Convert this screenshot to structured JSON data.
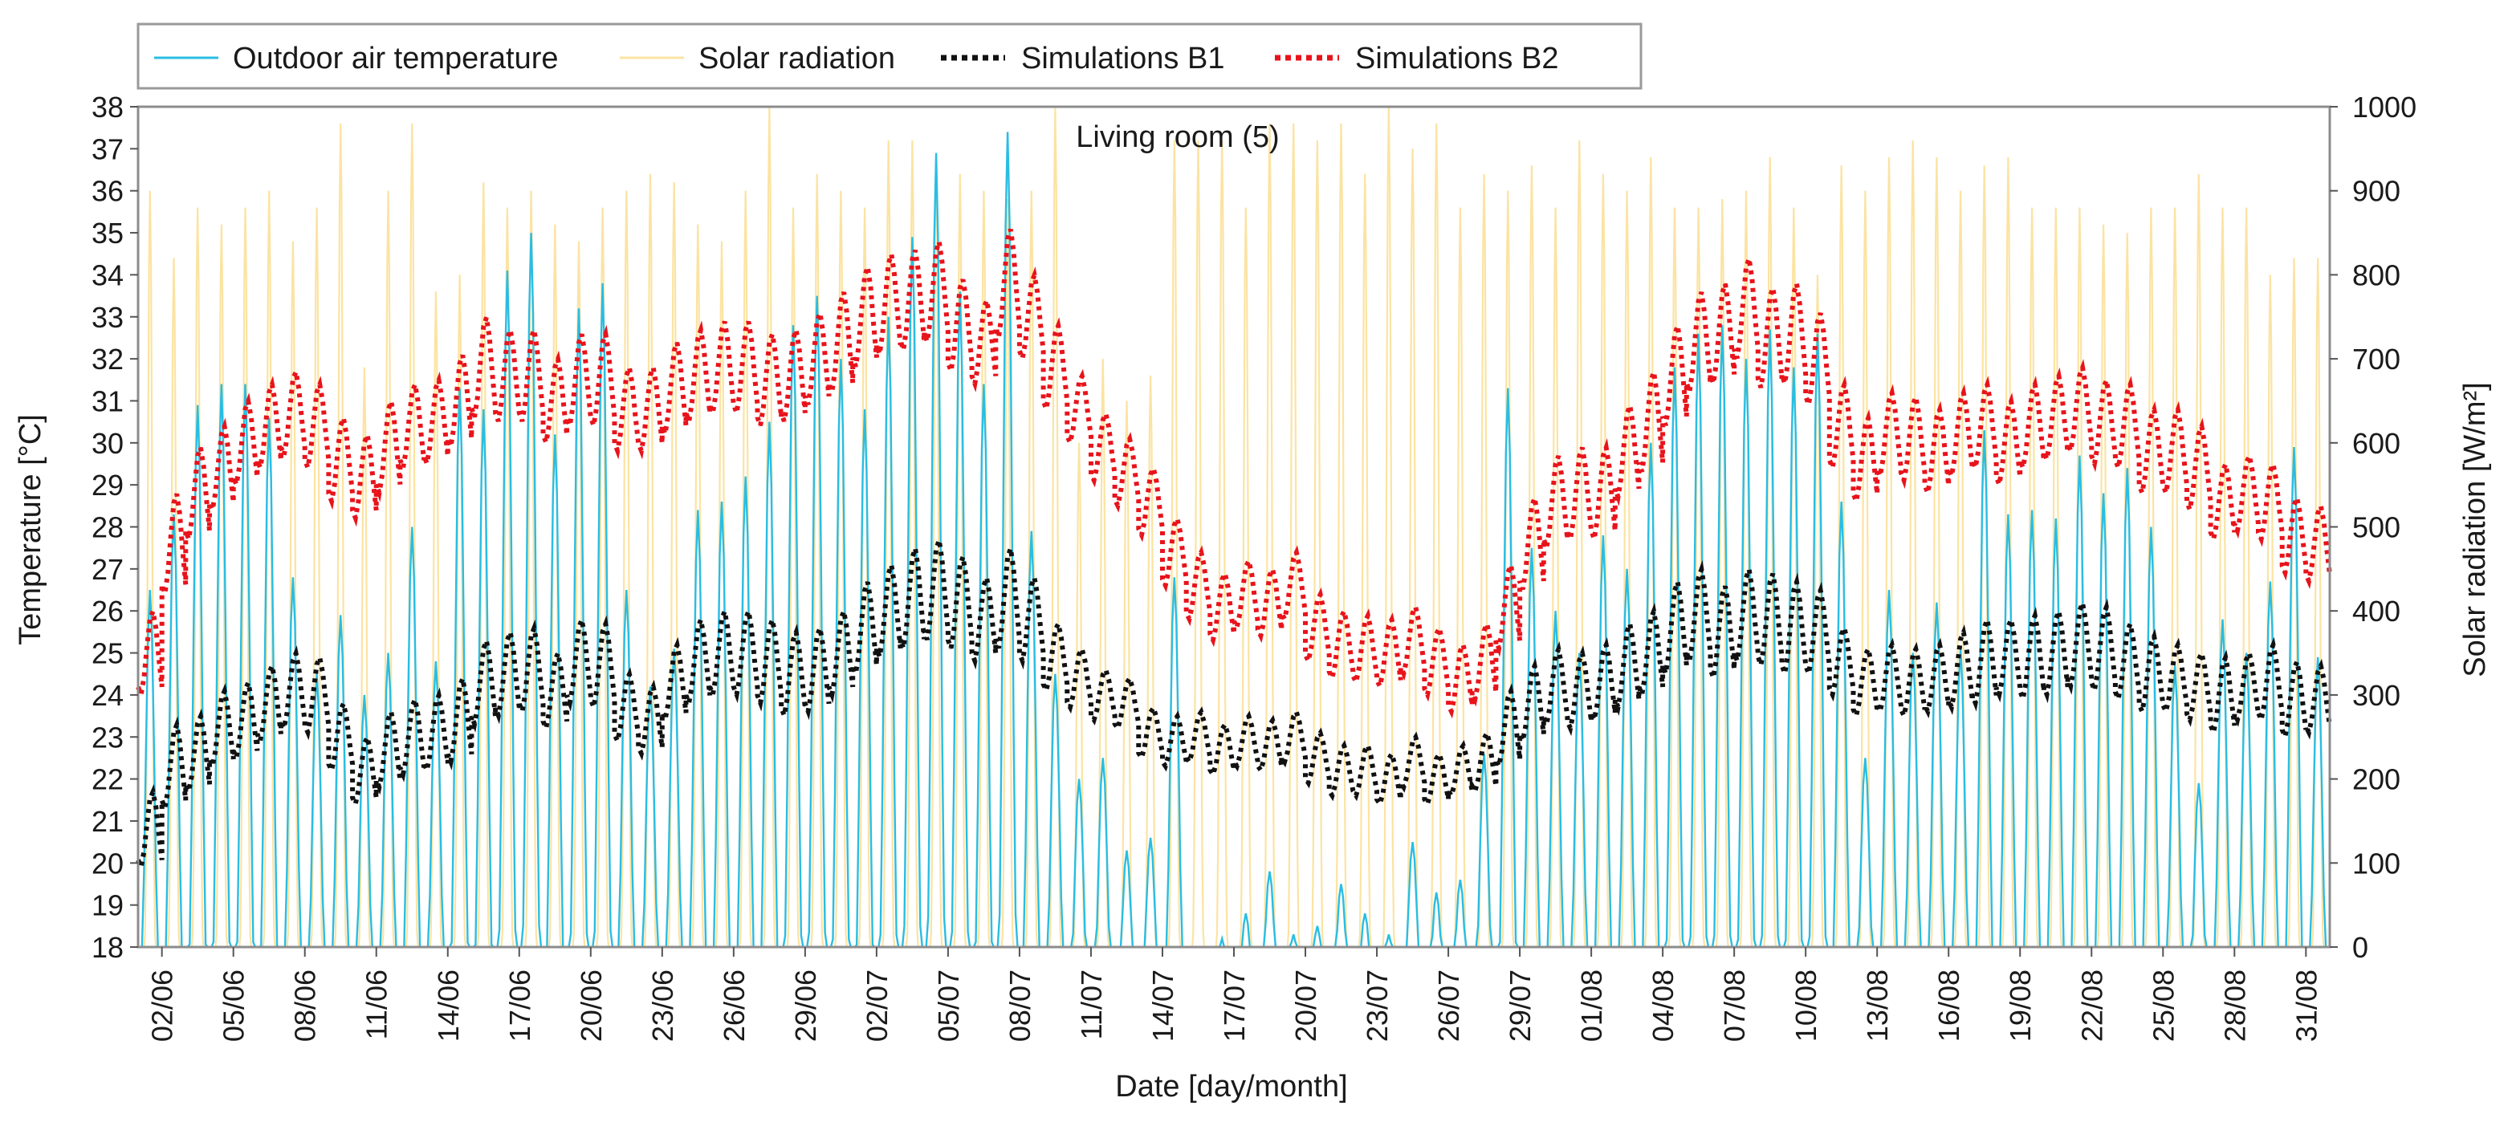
{
  "chart_data": {
    "type": "line",
    "title": "Living room (5)",
    "xlabel": "Date [day/month]",
    "ylabel_left": "Temperature [°C]",
    "ylabel_right": "Solar radiation [W/m²]",
    "ylim_left": [
      18,
      38
    ],
    "ylim_right": [
      0,
      1000
    ],
    "yticks_left": [
      18,
      19,
      20,
      21,
      22,
      23,
      24,
      25,
      26,
      27,
      28,
      29,
      30,
      31,
      32,
      33,
      34,
      35,
      36,
      37,
      38
    ],
    "yticks_right": [
      0,
      100,
      200,
      300,
      400,
      500,
      600,
      700,
      800,
      900,
      1000
    ],
    "x_range_days": [
      "01/06",
      "01/09"
    ],
    "xtick_labels": [
      "02/06",
      "05/06",
      "08/06",
      "11/06",
      "14/06",
      "17/06",
      "20/06",
      "23/06",
      "26/06",
      "29/06",
      "02/07",
      "05/07",
      "08/07",
      "11/07",
      "14/07",
      "17/07",
      "20/07",
      "23/07",
      "26/07",
      "29/07",
      "01/08",
      "04/08",
      "07/08",
      "10/08",
      "13/08",
      "16/08",
      "19/08",
      "22/08",
      "25/08",
      "28/08",
      "31/08"
    ],
    "grid": false,
    "legend_position": "top-left, above plot",
    "series": [
      {
        "name": "Outdoor air temperature",
        "axis": "left",
        "color": "#29bde3",
        "style": "solid",
        "daily_max": [
          26.5,
          28.3,
          30.9,
          31.4,
          31.4,
          30.6,
          26.8,
          24.5,
          25.9,
          24.0,
          25.0,
          28.0,
          24.8,
          31.3,
          30.8,
          34.1,
          35.0,
          30.2,
          33.2,
          33.8,
          26.5,
          24.2,
          25.1,
          28.4,
          28.6,
          29.2,
          30.5,
          32.8,
          33.5,
          32.0,
          30.8,
          33.0,
          34.9,
          36.9,
          33.6,
          31.4,
          37.4,
          27.9,
          24.5,
          22.0,
          22.5,
          20.3,
          20.6,
          26.8,
          18.0,
          18.2,
          18.8,
          19.8,
          18.3,
          18.5,
          19.5,
          18.8,
          18.3,
          20.5,
          19.3,
          19.6,
          22.6,
          31.3,
          27.5,
          26.0,
          25.0,
          27.8,
          27.0,
          30.0,
          31.8,
          32.6,
          32.8,
          32.0,
          32.7,
          31.8,
          32.6,
          28.6,
          22.5,
          26.5,
          25.0,
          26.2,
          25.1,
          30.3,
          28.3,
          28.4,
          28.2,
          29.7,
          28.8,
          29.4,
          28.0,
          24.7,
          21.9,
          25.8,
          25.0,
          26.7,
          29.9,
          24.9,
          26.8,
          25.4,
          27.1,
          28.9,
          29.5,
          31.3,
          31.0,
          32.6,
          32.0,
          32.0
        ],
        "daily_min": [
          18,
          18,
          18,
          18,
          18,
          18,
          18,
          18,
          18,
          18,
          18,
          18,
          18,
          18,
          18,
          18,
          18,
          18,
          18,
          18,
          18,
          18,
          18,
          18,
          18,
          18,
          18,
          18,
          18,
          18,
          18,
          18,
          18,
          18,
          18,
          18,
          18,
          18,
          18,
          18,
          18,
          18,
          18,
          18,
          18,
          18,
          18,
          18,
          18,
          18,
          18,
          18,
          18,
          18,
          18,
          18,
          18,
          18,
          18,
          18,
          18,
          18,
          18,
          18,
          18,
          18,
          18,
          18,
          18,
          18,
          18,
          18,
          18,
          18,
          18,
          18,
          18,
          18,
          18,
          18,
          18,
          18,
          18,
          18,
          18,
          18,
          18,
          18,
          18,
          18,
          18,
          18,
          18,
          18,
          18,
          18,
          18,
          18,
          18,
          18,
          18,
          18
        ]
      },
      {
        "name": "Solar radiation",
        "axis": "right",
        "color": "#fbe3a2",
        "style": "solid",
        "daily_peak": [
          900,
          820,
          880,
          860,
          880,
          900,
          840,
          880,
          980,
          690,
          900,
          980,
          780,
          800,
          910,
          880,
          900,
          860,
          840,
          880,
          900,
          920,
          910,
          860,
          840,
          900,
          1000,
          880,
          920,
          900,
          880,
          960,
          960,
          940,
          920,
          900,
          890,
          900,
          1000,
          600,
          700,
          650,
          680,
          960,
          960,
          960,
          880,
          980,
          980,
          960,
          980,
          920,
          1000,
          950,
          980,
          880,
          920,
          900,
          930,
          880,
          960,
          920,
          900,
          940,
          880,
          880,
          890,
          900,
          940,
          880,
          800,
          930,
          900,
          940,
          960,
          940,
          900,
          930,
          940,
          880,
          880,
          880,
          860,
          850,
          880,
          880,
          920,
          880,
          880,
          800,
          820,
          820,
          900,
          880,
          880,
          790,
          800,
          880,
          860,
          880,
          840,
          760
        ]
      },
      {
        "name": "Simulations B1",
        "axis": "left",
        "color": "#111111",
        "style": "dotted",
        "daily_mean": [
          20.8,
          22.3,
          22.6,
          23.2,
          23.4,
          23.8,
          24.1,
          24.0,
          23.0,
          22.2,
          22.7,
          23.0,
          23.1,
          23.4,
          24.3,
          24.5,
          24.6,
          24.1,
          24.8,
          24.7,
          23.7,
          23.4,
          24.3,
          24.8,
          25.0,
          25.0,
          24.8,
          24.5,
          24.6,
          25.0,
          25.6,
          26.0,
          26.3,
          26.5,
          26.2,
          25.8,
          26.3,
          25.8,
          24.9,
          24.4,
          24.0,
          23.8,
          23.1,
          22.9,
          23.0,
          22.7,
          22.9,
          22.8,
          23.0,
          22.5,
          22.2,
          22.2,
          22.0,
          22.4,
          22.0,
          22.2,
          22.4,
          23.2,
          23.8,
          24.2,
          24.1,
          24.3,
          24.7,
          25.0,
          25.6,
          25.9,
          25.5,
          25.9,
          25.8,
          25.6,
          25.5,
          24.8,
          24.3,
          24.4,
          24.3,
          24.4,
          24.6,
          24.8,
          24.9,
          24.9,
          25.0,
          25.2,
          25.1,
          24.8,
          24.5,
          24.4,
          24.2,
          24.0,
          24.2,
          24.3,
          23.9,
          23.9,
          23.7,
          23.8,
          24.1,
          24.3,
          24.6,
          24.8,
          25.0,
          25.3,
          25.4,
          26.0
        ],
        "daily_amplitude": [
          0.9,
          1.0,
          0.9,
          0.9,
          0.9,
          0.9,
          0.9,
          0.9,
          0.8,
          0.8,
          0.9,
          0.9,
          0.9,
          1.0,
          1.0,
          1.0,
          1.0,
          0.9,
          1.0,
          1.0,
          0.8,
          0.8,
          0.9,
          1.0,
          1.0,
          1.0,
          1.0,
          1.0,
          1.0,
          1.0,
          1.1,
          1.1,
          1.2,
          1.2,
          1.1,
          1.0,
          1.2,
          1.0,
          0.8,
          0.7,
          0.6,
          0.6,
          0.6,
          0.6,
          0.6,
          0.6,
          0.6,
          0.6,
          0.6,
          0.6,
          0.6,
          0.6,
          0.6,
          0.6,
          0.6,
          0.6,
          0.7,
          0.9,
          0.9,
          0.9,
          0.9,
          0.9,
          1.0,
          1.0,
          1.1,
          1.1,
          1.1,
          1.1,
          1.1,
          1.1,
          1.0,
          0.8,
          0.8,
          0.8,
          0.8,
          0.8,
          0.9,
          1.0,
          0.9,
          1.0,
          1.0,
          1.0,
          1.0,
          0.9,
          0.9,
          0.8,
          0.8,
          0.9,
          0.8,
          0.9,
          0.9,
          0.8,
          0.8,
          0.8,
          0.9,
          0.9,
          0.9,
          1.0,
          1.0,
          1.0,
          1.0,
          1.2
        ]
      },
      {
        "name": "Simulations B2",
        "axis": "left",
        "color": "#e8131b",
        "style": "dotted",
        "daily_mean": [
          25.0,
          27.6,
          28.8,
          29.4,
          30.0,
          30.4,
          30.7,
          30.4,
          29.6,
          29.2,
          29.9,
          30.4,
          30.5,
          31.0,
          31.8,
          31.6,
          31.6,
          31.0,
          31.5,
          31.5,
          30.8,
          30.8,
          31.3,
          31.6,
          31.8,
          31.8,
          31.5,
          31.6,
          32.0,
          32.4,
          33.0,
          33.3,
          33.4,
          33.6,
          32.8,
          32.4,
          33.8,
          33.0,
          31.8,
          30.8,
          29.9,
          29.3,
          28.6,
          27.4,
          26.6,
          26.1,
          26.4,
          26.2,
          26.6,
          25.6,
          25.2,
          25.1,
          25.0,
          25.3,
          24.8,
          24.4,
          24.8,
          26.1,
          27.6,
          28.6,
          28.8,
          28.8,
          29.8,
          30.5,
          31.6,
          32.4,
          32.6,
          33.2,
          32.5,
          32.6,
          32.0,
          30.4,
          29.6,
          30.2,
          30.1,
          29.8,
          30.2,
          30.4,
          30.0,
          30.4,
          30.6,
          30.8,
          30.5,
          30.4,
          29.8,
          29.8,
          29.4,
          28.6,
          28.8,
          28.6,
          27.8,
          27.6,
          27.8,
          27.8,
          28.8,
          30.0,
          30.4,
          30.4,
          30.8,
          31.6,
          31.8,
          33.8
        ],
        "daily_amplitude": [
          1.0,
          1.2,
          1.1,
          1.0,
          1.0,
          1.0,
          1.0,
          1.0,
          1.0,
          1.0,
          1.1,
          1.0,
          1.0,
          1.1,
          1.2,
          1.1,
          1.1,
          1.0,
          1.1,
          1.1,
          1.0,
          1.0,
          1.1,
          1.1,
          1.1,
          1.1,
          1.1,
          1.1,
          1.1,
          1.2,
          1.2,
          1.2,
          1.2,
          1.2,
          1.1,
          1.0,
          1.3,
          1.0,
          1.0,
          0.8,
          0.8,
          0.8,
          0.8,
          0.8,
          0.8,
          0.8,
          0.8,
          0.8,
          0.8,
          0.8,
          0.8,
          0.8,
          0.8,
          0.8,
          0.8,
          0.8,
          0.9,
          1.0,
          1.1,
          1.1,
          1.1,
          1.1,
          1.1,
          1.2,
          1.2,
          1.2,
          1.2,
          1.2,
          1.2,
          1.2,
          1.1,
          1.0,
          1.0,
          1.0,
          1.0,
          1.0,
          1.0,
          1.0,
          1.0,
          1.0,
          1.0,
          1.0,
          1.0,
          1.0,
          1.0,
          1.0,
          1.0,
          0.9,
          0.9,
          0.9,
          0.9,
          0.9,
          0.9,
          1.0,
          1.0,
          1.1,
          1.1,
          1.1,
          1.1,
          1.2,
          1.2,
          1.3
        ]
      }
    ]
  }
}
